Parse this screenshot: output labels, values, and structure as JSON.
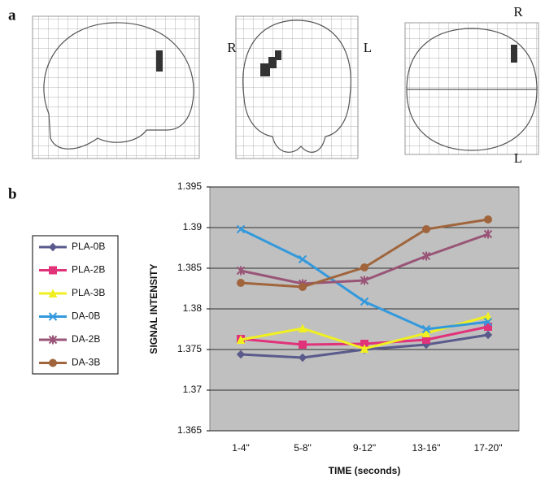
{
  "chart_data": {
    "type": "line",
    "panel_labels": [
      "a",
      "b"
    ],
    "orientation_labels": [
      "R",
      "L",
      "R",
      "L"
    ],
    "xlabel": "TIME (seconds)",
    "ylabel": "SIGNAL INTENSITY",
    "categories": [
      "1-4\"",
      "5-8\"",
      "9-12\"",
      "13-16\"",
      "17-20\""
    ],
    "ylim": [
      1.365,
      1.395
    ],
    "yticks": [
      1.365,
      1.37,
      1.375,
      1.38,
      1.385,
      1.39,
      1.395
    ],
    "grid": true,
    "legend": "left",
    "series": [
      {
        "name": "PLA-0B",
        "color": "#5a5a8c",
        "marker": "diamond",
        "values": [
          1.3744,
          1.374,
          1.375,
          1.3756,
          1.3768
        ]
      },
      {
        "name": "PLA-2B",
        "color": "#e0337a",
        "marker": "square",
        "values": [
          1.3763,
          1.3756,
          1.3757,
          1.3762,
          1.3778
        ]
      },
      {
        "name": "PLA-3B",
        "color": "#f0f020",
        "marker": "triangle",
        "values": [
          1.3762,
          1.3776,
          1.3751,
          1.377,
          1.3791
        ]
      },
      {
        "name": "DA-0B",
        "color": "#3399dd",
        "marker": "x",
        "values": [
          1.3898,
          1.3861,
          1.3809,
          1.3775,
          1.3784
        ]
      },
      {
        "name": "DA-2B",
        "color": "#995577",
        "marker": "star",
        "values": [
          1.3847,
          1.3831,
          1.3835,
          1.3865,
          1.3892
        ]
      },
      {
        "name": "DA-3B",
        "color": "#a0653c",
        "marker": "circle",
        "values": [
          1.3832,
          1.3827,
          1.3851,
          1.3898,
          1.391
        ]
      }
    ]
  }
}
